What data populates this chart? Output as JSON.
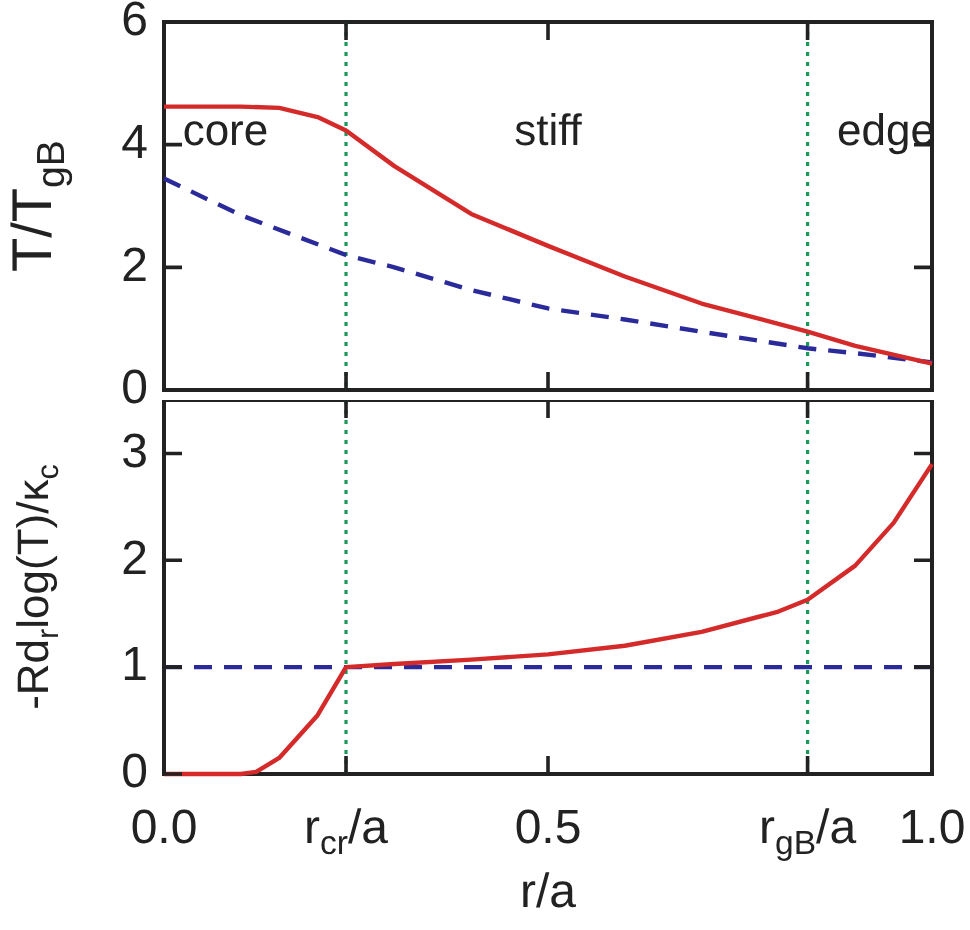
{
  "chart_data": [
    {
      "type": "line",
      "ylabel": "T/T$_{gB}$",
      "xlim": [
        0,
        1
      ],
      "ylim": [
        0,
        6
      ],
      "xticks": [
        0,
        0.237,
        0.5,
        0.838,
        1
      ],
      "yticks": [
        0,
        2,
        4,
        6
      ],
      "tick_labels": "y",
      "grid": false,
      "legend": false,
      "marker": "none",
      "annotations": [
        "core",
        "stiff",
        "edge"
      ],
      "ref_lines": [
        {
          "axis": "x",
          "value": 0.237,
          "color": "#1a9a5a",
          "line_style": "dotted"
        },
        {
          "axis": "x",
          "value": 0.838,
          "color": "#1a9a5a",
          "line_style": "dotted"
        }
      ],
      "series": [
        {
          "color": "#d42a2a",
          "line_style": "solid",
          "x": [
            0,
            0.05,
            0.1,
            0.15,
            0.2,
            0.237,
            0.3,
            0.4,
            0.5,
            0.6,
            0.7,
            0.8,
            0.838,
            0.9,
            1.0
          ],
          "values": [
            4.62,
            4.62,
            4.62,
            4.6,
            4.45,
            4.23,
            3.65,
            2.87,
            2.35,
            1.85,
            1.41,
            1.08,
            0.95,
            0.72,
            0.43
          ]
        },
        {
          "color": "#2a2a9a",
          "line_style": "dashed",
          "x": [
            0,
            0.1,
            0.237,
            0.3,
            0.4,
            0.5,
            0.6,
            0.7,
            0.838,
            0.9,
            1.0
          ],
          "values": [
            3.45,
            2.85,
            2.2,
            2.0,
            1.63,
            1.33,
            1.15,
            0.95,
            0.68,
            0.6,
            0.45
          ]
        }
      ]
    },
    {
      "type": "line",
      "xlabel": "r/a",
      "ylabel": "-Rd$_{r}$log(T)/κ$_{c}$",
      "xlim": [
        0,
        1
      ],
      "ylim": [
        0,
        3.5
      ],
      "xticks": [
        {
          "value": 0,
          "label": "0.0"
        },
        {
          "value": 0.237,
          "label": "r$_{cr}$/a"
        },
        0.5,
        {
          "value": 0.838,
          "label": "r$_{gB}$/a"
        },
        {
          "value": 1,
          "label": "1.0"
        }
      ],
      "yticks": [
        0,
        1,
        2,
        3
      ],
      "grid": false,
      "legend": false,
      "marker": "none",
      "ref_lines": [
        {
          "axis": "x",
          "value": 0.237,
          "color": "#1a9a5a",
          "line_style": "dotted"
        },
        {
          "axis": "x",
          "value": 0.838,
          "color": "#1a9a5a",
          "line_style": "dotted"
        }
      ],
      "series": [
        {
          "color": "#d42a2a",
          "line_style": "solid",
          "x": [
            0,
            0.1,
            0.12,
            0.15,
            0.2,
            0.237,
            0.3,
            0.4,
            0.5,
            0.6,
            0.7,
            0.8,
            0.838,
            0.9,
            0.95,
            1.0
          ],
          "values": [
            0,
            0,
            0.02,
            0.15,
            0.55,
            1.0,
            1.03,
            1.07,
            1.12,
            1.2,
            1.33,
            1.52,
            1.63,
            1.95,
            2.35,
            2.9
          ]
        },
        {
          "color": "#2a2a9a",
          "line_style": "dashed",
          "x": [
            0,
            1
          ],
          "values": [
            1,
            1
          ]
        }
      ]
    }
  ]
}
